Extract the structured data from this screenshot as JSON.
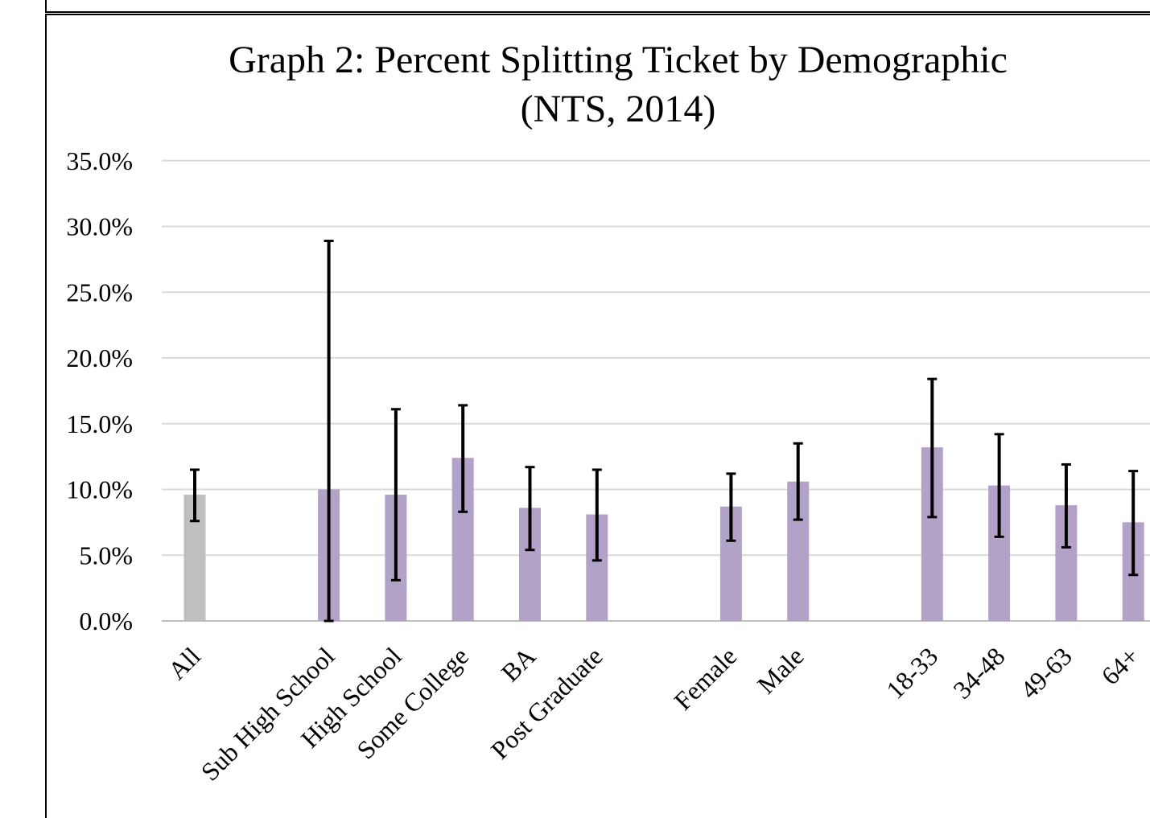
{
  "chart_data": {
    "type": "bar",
    "title": [
      "Graph 2: Percent Splitting Ticket by Demographic",
      "(NTS, 2014)"
    ],
    "xlabel": "",
    "ylabel": "",
    "ylim": [
      0,
      35
    ],
    "y_ticks": [
      0,
      5,
      10,
      15,
      20,
      25,
      30,
      35
    ],
    "y_tick_labels": [
      "0.0%",
      "5.0%",
      "10.0%",
      "15.0%",
      "20.0%",
      "25.0%",
      "30.0%",
      "35.0%"
    ],
    "grid": true,
    "legend": "none",
    "bar_colors": {
      "overall": "#bfbfbf",
      "group": "#b3a2c7",
      "error_bar": "#000000",
      "grid": "#d9d9d9",
      "axis": "#bfbfbf"
    },
    "categories": [
      "All",
      "",
      "Sub High School",
      "High School",
      "Some College",
      "BA",
      "Post Graduate",
      "",
      "Female",
      "Male",
      "",
      "18-33",
      "34-48",
      "49-63",
      "64+"
    ],
    "values": [
      9.6,
      null,
      10.0,
      9.6,
      12.4,
      8.6,
      8.1,
      null,
      8.7,
      10.6,
      null,
      13.2,
      10.3,
      8.8,
      7.5
    ],
    "error_low": [
      7.6,
      null,
      0.0,
      3.1,
      8.3,
      5.4,
      4.6,
      null,
      6.1,
      7.7,
      null,
      7.9,
      6.4,
      5.6,
      3.5
    ],
    "error_high": [
      11.5,
      null,
      28.9,
      16.1,
      16.4,
      11.7,
      11.5,
      null,
      11.2,
      13.5,
      null,
      18.4,
      14.2,
      11.9,
      11.4
    ]
  }
}
